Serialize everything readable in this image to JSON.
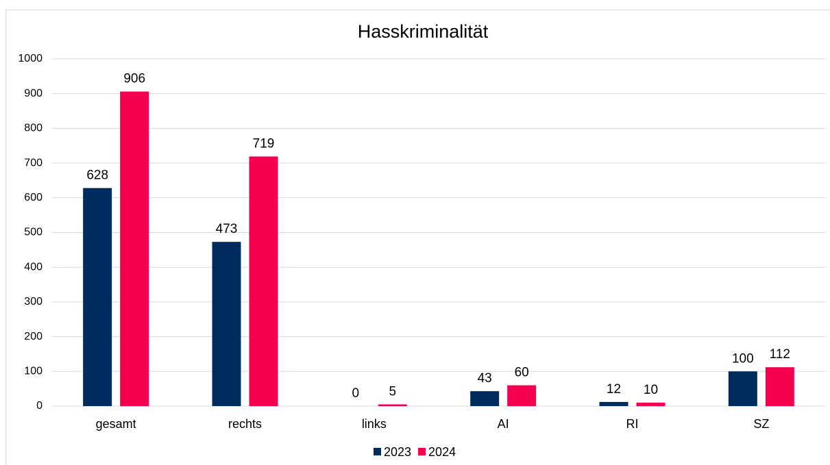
{
  "chart_data": {
    "type": "bar",
    "title": "Hasskriminalität",
    "categories": [
      "gesamt",
      "rechts",
      "links",
      "AI",
      "RI",
      "SZ"
    ],
    "series": [
      {
        "name": "2023",
        "color": "#002b5e",
        "values": [
          628,
          473,
          0,
          43,
          12,
          100
        ]
      },
      {
        "name": "2024",
        "color": "#f5004f",
        "values": [
          906,
          719,
          5,
          60,
          10,
          112
        ]
      }
    ],
    "ylim": [
      0,
      1000
    ],
    "yticks": [
      0,
      100,
      200,
      300,
      400,
      500,
      600,
      700,
      800,
      900,
      1000
    ],
    "grid": true,
    "legend": "bottom"
  }
}
